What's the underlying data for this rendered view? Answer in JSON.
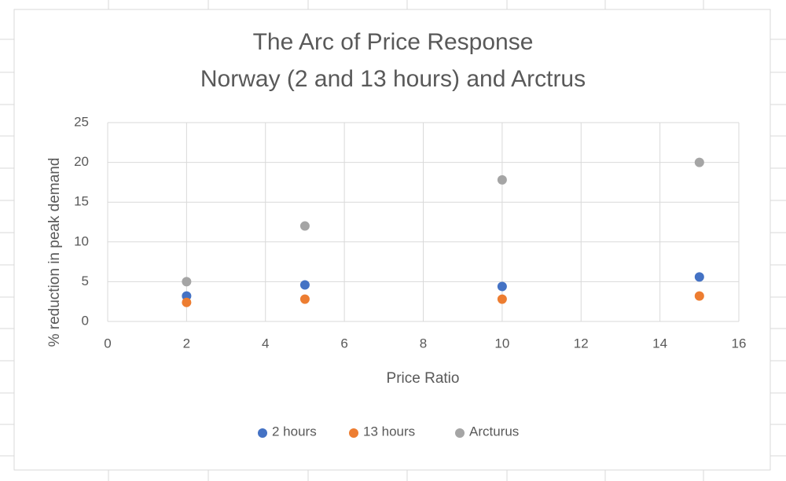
{
  "chart_data": {
    "type": "scatter",
    "title": "The Arc of Price Response",
    "subtitle": "Norway (2 and 13 hours) and Arctrus",
    "x_label": "Price Ratio",
    "y_label": "% reduction in peak demand",
    "x": [
      2,
      5,
      10,
      15
    ],
    "series": [
      {
        "name": "2 hours",
        "color": "#4472c4",
        "values": [
          3.2,
          4.6,
          4.4,
          5.6
        ]
      },
      {
        "name": "13 hours",
        "color": "#ed7d31",
        "values": [
          2.4,
          2.8,
          2.8,
          3.2
        ]
      },
      {
        "name": "Arcturus",
        "color": "#a5a5a5",
        "values": [
          5,
          12,
          17.8,
          20
        ]
      }
    ],
    "xlim": [
      0,
      16
    ],
    "xticks": [
      0,
      2,
      4,
      6,
      8,
      10,
      12,
      14,
      16
    ],
    "ylim": [
      0,
      25
    ],
    "yticks": [
      0,
      5,
      10,
      15,
      20,
      25
    ],
    "grid": true,
    "legend": "bottom"
  }
}
